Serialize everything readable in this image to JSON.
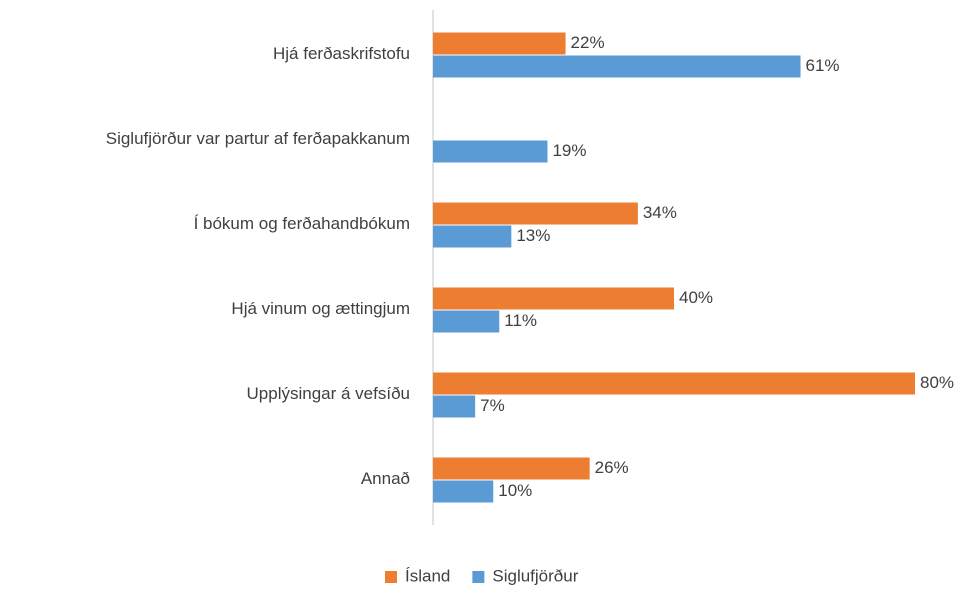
{
  "chart_data": {
    "type": "barh",
    "categories": [
      "Hjá ferðaskrifstofu",
      "Siglufjörður var partur af ferðapakkanum",
      "Í bókum og ferðahandbókum",
      "Hjá vinum og ættingjum",
      "Upplýsingar á vefsíðu",
      "Annað"
    ],
    "series": [
      {
        "name": "Ísland",
        "color": "#ed7d31",
        "values": [
          22,
          null,
          34,
          40,
          80,
          26
        ],
        "value_labels": [
          "22%",
          null,
          "34%",
          "40%",
          "80%",
          "26%"
        ]
      },
      {
        "name": "Siglufjörður",
        "color": "#5b9bd5",
        "values": [
          61,
          19,
          13,
          11,
          7,
          10
        ],
        "value_labels": [
          "61%",
          "19%",
          "13%",
          "11%",
          "7%",
          "10%"
        ]
      }
    ],
    "xlim": [
      0,
      80
    ],
    "legend": "bottom"
  }
}
